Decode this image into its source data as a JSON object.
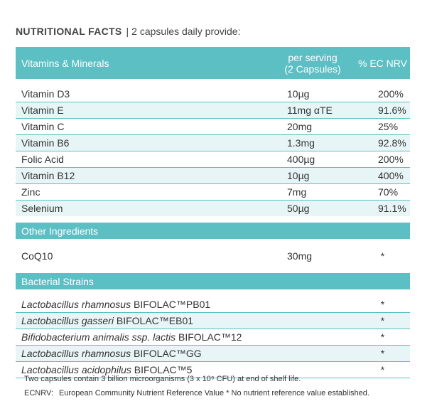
{
  "heading": {
    "bold": "NUTRITIONAL FACTS",
    "separator": "|",
    "rest": "2 capsules daily provide:"
  },
  "columns": {
    "name": "Vitamins & Minerals",
    "serving_line1": "per serving",
    "serving_line2": "(2 Capsules)",
    "nrv": "% EC NRV"
  },
  "vitamins": [
    {
      "name": "Vitamin D3",
      "amount": "10µg",
      "nrv": "200%"
    },
    {
      "name": "Vitamin E",
      "amount": "11mg αTE",
      "nrv": "91.6%"
    },
    {
      "name": "Vitamin C",
      "amount": "20mg",
      "nrv": "25%"
    },
    {
      "name": "Vitamin B6",
      "amount": "1.3mg",
      "nrv": "92.8%"
    },
    {
      "name": "Folic Acid",
      "amount": "400µg",
      "nrv": "200%"
    },
    {
      "name": "Vitamin B12",
      "amount": "10µg",
      "nrv": "400%"
    },
    {
      "name": "Zinc",
      "amount": "7mg",
      "nrv": "70%"
    },
    {
      "name": "Selenium",
      "amount": "50µg",
      "nrv": "91.1%"
    }
  ],
  "other": {
    "title": "Other Ingredients",
    "items": [
      {
        "name": "CoQ10",
        "amount": "30mg",
        "nrv": "*"
      }
    ]
  },
  "bacteria": {
    "title": "Bacterial Strains",
    "items": [
      {
        "species": "Lactobacillus rhamnosus",
        "strain": "BIFOLAC™PB01",
        "nrv": "*"
      },
      {
        "species": "Lactobacillus gasseri",
        "strain": "BIFOLAC™EB01",
        "nrv": "*"
      },
      {
        "species": "Bifidobacterium animalis ssp. lactis",
        "strain": "BIFOLAC™12",
        "nrv": "*"
      },
      {
        "species": "Lactobacillus rhamnosus",
        "strain": "BIFOLAC™GG",
        "nrv": "*"
      },
      {
        "species": "Lactobacillus acidophilus",
        "strain": "BIFOLAC™5",
        "nrv": "*"
      }
    ]
  },
  "footnotes": {
    "line1": "Two capsules contain 3 billion microorganisms (3 x 10⁹ CFU) at end of shelf life.",
    "label": "ECNRV:",
    "line2": "European Community Nutrient Reference Value * No nutrient reference value established."
  },
  "colors": {
    "accent": "#5bbfc3",
    "stripe": "#e8f5f6"
  }
}
